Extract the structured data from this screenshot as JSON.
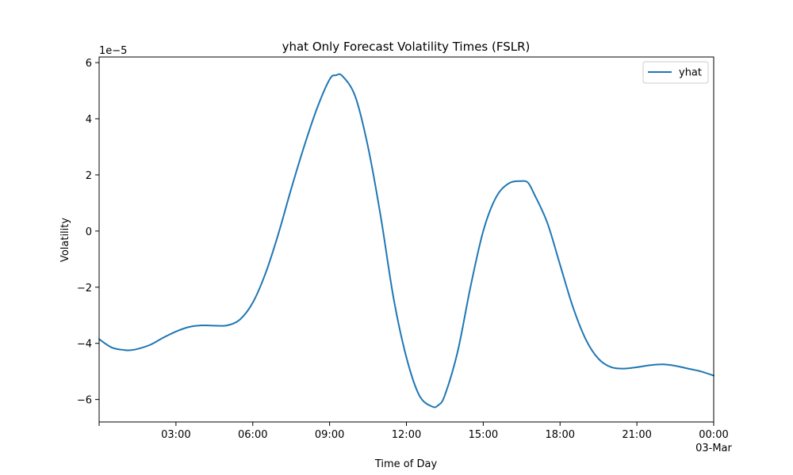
{
  "chart_data": {
    "type": "line",
    "title": "yhat Only Forecast Volatility Times (FSLR)",
    "xlabel": "Time of Day",
    "ylabel": "Volatility",
    "y_offset_text": "1e−5",
    "y_multiplier": 1e-05,
    "xlim_hours": [
      0,
      24
    ],
    "ylim": [
      -6.8,
      6.2
    ],
    "x_ticks": [
      {
        "hour": 0,
        "label": ""
      },
      {
        "hour": 3,
        "label": "03:00"
      },
      {
        "hour": 6,
        "label": "06:00"
      },
      {
        "hour": 9,
        "label": "09:00"
      },
      {
        "hour": 12,
        "label": "12:00"
      },
      {
        "hour": 15,
        "label": "15:00"
      },
      {
        "hour": 18,
        "label": "18:00"
      },
      {
        "hour": 21,
        "label": "21:00"
      },
      {
        "hour": 24,
        "label": "00:00",
        "sublabel": "03-Mar"
      }
    ],
    "y_ticks": [
      {
        "value": -6,
        "label": "−6"
      },
      {
        "value": -4,
        "label": "−4"
      },
      {
        "value": -2,
        "label": "−2"
      },
      {
        "value": 0,
        "label": "0"
      },
      {
        "value": 2,
        "label": "2"
      },
      {
        "value": 4,
        "label": "4"
      },
      {
        "value": 6,
        "label": "6"
      }
    ],
    "grid": false,
    "legend_position": "top-right",
    "series": [
      {
        "name": "yhat",
        "color": "#1f77b4",
        "x_hours": [
          0,
          0.5,
          1,
          1.25,
          1.5,
          2,
          2.5,
          3,
          3.5,
          4,
          4.5,
          5,
          5.5,
          6,
          6.5,
          7,
          7.5,
          8,
          8.5,
          9,
          9.25,
          9.5,
          10,
          10.5,
          11,
          11.5,
          12,
          12.5,
          13,
          13.25,
          13.5,
          14,
          14.5,
          15,
          15.5,
          16,
          16.5,
          16.75,
          17,
          17.5,
          18,
          18.5,
          19,
          19.5,
          20,
          20.5,
          21,
          21.5,
          22,
          22.5,
          23,
          23.5,
          24
        ],
        "y": [
          -3.85,
          -4.15,
          -4.24,
          -4.24,
          -4.2,
          -4.05,
          -3.8,
          -3.58,
          -3.42,
          -3.36,
          -3.37,
          -3.36,
          -3.15,
          -2.55,
          -1.5,
          -0.1,
          1.5,
          3.0,
          4.35,
          5.4,
          5.55,
          5.52,
          4.8,
          3.0,
          0.5,
          -2.4,
          -4.5,
          -5.85,
          -6.25,
          -6.2,
          -5.85,
          -4.3,
          -2.0,
          0.0,
          1.2,
          1.7,
          1.78,
          1.72,
          1.3,
          0.3,
          -1.2,
          -2.7,
          -3.85,
          -4.55,
          -4.85,
          -4.9,
          -4.85,
          -4.78,
          -4.75,
          -4.8,
          -4.9,
          -5.0,
          -5.15
        ]
      }
    ]
  }
}
